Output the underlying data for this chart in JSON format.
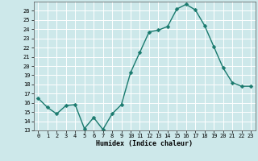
{
  "x": [
    0,
    1,
    2,
    3,
    4,
    5,
    6,
    7,
    8,
    9,
    10,
    11,
    12,
    13,
    14,
    15,
    16,
    17,
    18,
    19,
    20,
    21,
    22,
    23
  ],
  "y": [
    16.5,
    15.5,
    14.8,
    15.7,
    15.8,
    13.2,
    14.4,
    13.1,
    14.8,
    15.8,
    19.3,
    21.5,
    23.7,
    23.9,
    24.3,
    26.2,
    26.7,
    26.1,
    24.4,
    22.1,
    19.8,
    18.2,
    17.8,
    17.8
  ],
  "line_color": "#1a7a6e",
  "marker_color": "#1a7a6e",
  "bg_color": "#cde8ea",
  "grid_color": "#ffffff",
  "xlabel": "Humidex (Indice chaleur)",
  "ylim": [
    13,
    27
  ],
  "xlim": [
    -0.5,
    23.5
  ],
  "yticks": [
    13,
    14,
    15,
    16,
    17,
    18,
    19,
    20,
    21,
    22,
    23,
    24,
    25,
    26
  ],
  "xticks": [
    0,
    1,
    2,
    3,
    4,
    5,
    6,
    7,
    8,
    9,
    10,
    11,
    12,
    13,
    14,
    15,
    16,
    17,
    18,
    19,
    20,
    21,
    22,
    23
  ],
  "xtick_labels": [
    "0",
    "1",
    "2",
    "3",
    "4",
    "5",
    "6",
    "7",
    "8",
    "9",
    "10",
    "11",
    "12",
    "13",
    "14",
    "15",
    "16",
    "17",
    "18",
    "19",
    "20",
    "21",
    "22",
    "23"
  ],
  "line_width": 1.0,
  "marker_size": 2.5
}
